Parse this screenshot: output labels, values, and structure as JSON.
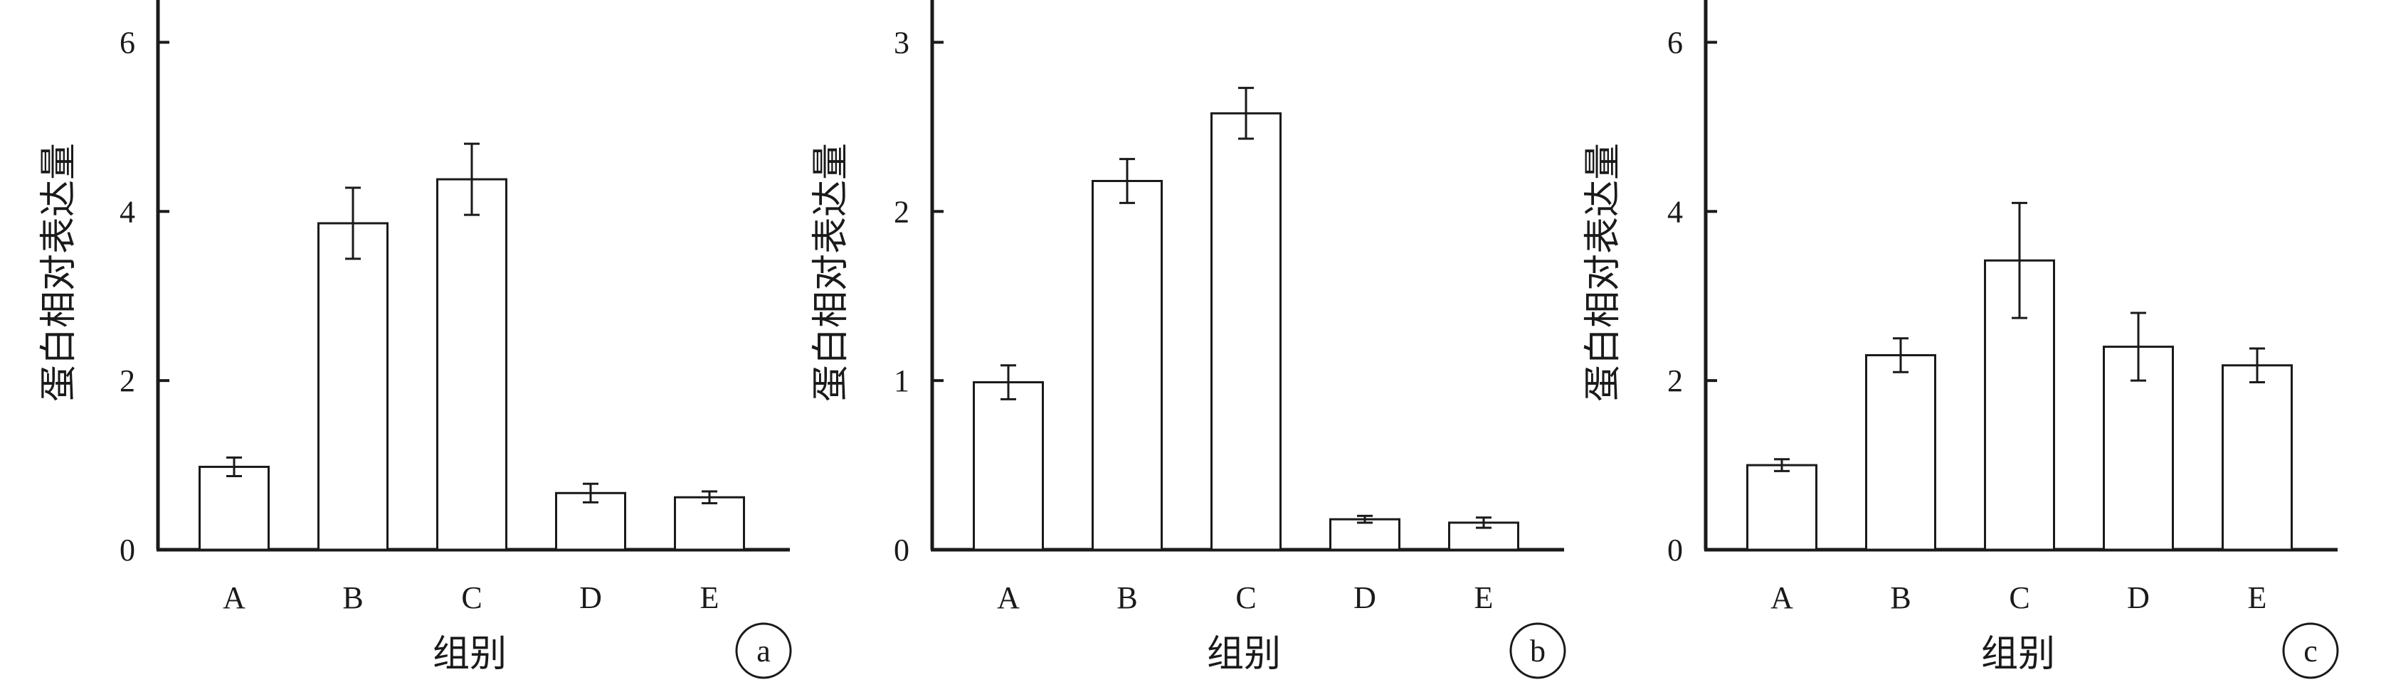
{
  "chart_data": [
    {
      "type": "bar",
      "panel_label": "a",
      "categories": [
        "A",
        "B",
        "C",
        "D",
        "E"
      ],
      "values": [
        0.98,
        3.86,
        4.38,
        0.67,
        0.62
      ],
      "errors": [
        0.11,
        0.42,
        0.42,
        0.11,
        0.07
      ],
      "xlabel": "组别",
      "ylabel": "蛋白相对表达量",
      "ylim": [
        0,
        6.5
      ],
      "yticks": [
        "0",
        "2",
        "4",
        "6"
      ],
      "grid": false
    },
    {
      "type": "bar",
      "panel_label": "b",
      "categories": [
        "A",
        "B",
        "C",
        "D",
        "E"
      ],
      "values": [
        0.99,
        2.18,
        2.58,
        0.18,
        0.16
      ],
      "errors": [
        0.1,
        0.13,
        0.15,
        0.02,
        0.03
      ],
      "xlabel": "组别",
      "ylabel": "蛋白相对表达量",
      "ylim": [
        0,
        3.25
      ],
      "yticks": [
        "0",
        "1",
        "2",
        "3"
      ],
      "grid": false
    },
    {
      "type": "bar",
      "panel_label": "c",
      "categories": [
        "A",
        "B",
        "C",
        "D",
        "E"
      ],
      "values": [
        1.0,
        2.3,
        3.42,
        2.4,
        2.18
      ],
      "errors": [
        0.07,
        0.2,
        0.68,
        0.4,
        0.2
      ],
      "xlabel": "组别",
      "ylabel": "蛋白相对表达量",
      "ylim": [
        0,
        6.5
      ],
      "yticks": [
        "0",
        "2",
        "4",
        "6"
      ],
      "grid": false
    }
  ]
}
